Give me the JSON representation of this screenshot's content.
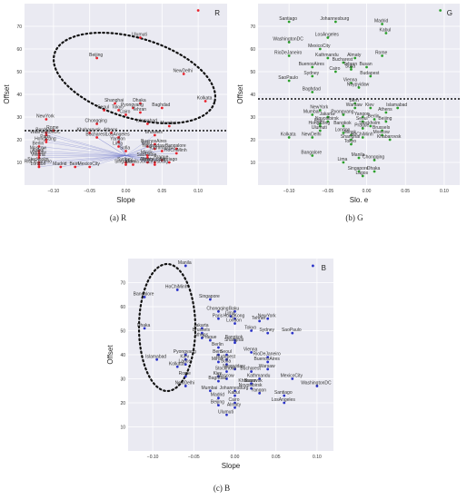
{
  "chart_data": [
    {
      "type": "scatter",
      "corner_label": "R",
      "caption": "(a) R",
      "xlabel": "Slope",
      "ylabel": "Offset",
      "xlim": [
        -0.14,
        0.14
      ],
      "ylim": [
        0,
        80
      ],
      "xticks": [
        -0.1,
        -0.05,
        0.0,
        0.05,
        0.1
      ],
      "xtick_labels": [
        "−0.10",
        "−0.05",
        "0.00",
        "0.05",
        "0.10"
      ],
      "yticks": [
        10,
        20,
        30,
        40,
        50,
        60,
        70
      ],
      "yticks_labels": [
        "10",
        "20",
        "30",
        "40",
        "50",
        "60",
        "70"
      ],
      "grid": true,
      "marker_color": "#e8212b",
      "threshold_y": 24,
      "fan_origin": [
        0.0,
        13
      ],
      "points": [
        {
          "x": 0.1,
          "y": 77,
          "label": ""
        },
        {
          "x": 0.02,
          "y": 65,
          "label": "Ulumuti"
        },
        {
          "x": -0.04,
          "y": 56,
          "label": "Beijing"
        },
        {
          "x": 0.08,
          "y": 49,
          "label": "NewDelhi"
        },
        {
          "x": 0.02,
          "y": 36,
          "label": "Dhaka"
        },
        {
          "x": 0.05,
          "y": 34,
          "label": "Baghdad"
        },
        {
          "x": 0.11,
          "y": 37,
          "label": "Kolkata"
        },
        {
          "x": -0.015,
          "y": 36,
          "label": "Shanghai"
        },
        {
          "x": -0.03,
          "y": 33,
          "label": "Seoul"
        },
        {
          "x": -0.01,
          "y": 33,
          "label": "Tokyo"
        },
        {
          "x": 0.0,
          "y": 31,
          "label": "Cairo"
        },
        {
          "x": 0.01,
          "y": 34,
          "label": "Pyongyang"
        },
        {
          "x": 0.02,
          "y": 32,
          "label": "Tehran"
        },
        {
          "x": -0.11,
          "y": 29,
          "label": "NewYork"
        },
        {
          "x": -0.04,
          "y": 27,
          "label": "Chongqing"
        },
        {
          "x": 0.03,
          "y": 27,
          "label": "Islamabad"
        },
        {
          "x": 0.06,
          "y": 26,
          "label": "Mumbai"
        },
        {
          "x": -0.1,
          "y": 24,
          "label": "Rome"
        },
        {
          "x": -0.11,
          "y": 23,
          "label": "Bordeaux"
        },
        {
          "x": -0.05,
          "y": 23,
          "label": "Khabarovsk"
        },
        {
          "x": -0.02,
          "y": 23,
          "label": "Athens"
        },
        {
          "x": 0.04,
          "y": 22,
          "label": "Brussels"
        },
        {
          "x": -0.11,
          "y": 22,
          "label": "WashingtonDC"
        },
        {
          "x": -0.01,
          "y": 21,
          "label": "LosAngeles"
        },
        {
          "x": -0.04,
          "y": 21,
          "label": "Bucharest"
        },
        {
          "x": -0.11,
          "y": 20,
          "label": "Paris"
        },
        {
          "x": -0.11,
          "y": 19,
          "label": "HongKong"
        },
        {
          "x": -0.01,
          "y": 19,
          "label": "Yangon"
        },
        {
          "x": 0.04,
          "y": 18,
          "label": "BuenosAires"
        },
        {
          "x": 0.03,
          "y": 17,
          "label": "Baku"
        },
        {
          "x": 0.04,
          "y": 16,
          "label": "Naypyidaw"
        },
        {
          "x": 0.07,
          "y": 16,
          "label": "Bangalore"
        },
        {
          "x": 0.05,
          "y": 15,
          "label": "Kathmandu"
        },
        {
          "x": 0.07,
          "y": 14,
          "label": "HoChiMinh"
        },
        {
          "x": -0.12,
          "y": 17,
          "label": "Berlin"
        },
        {
          "x": -0.12,
          "y": 15,
          "label": "Moscow"
        },
        {
          "x": -0.12,
          "y": 14,
          "label": "Kabul"
        },
        {
          "x": -0.12,
          "y": 13,
          "label": "Warsaw"
        },
        {
          "x": -0.12,
          "y": 12,
          "label": "Vienna"
        },
        {
          "x": -0.12,
          "y": 10,
          "label": "Stockholm"
        },
        {
          "x": -0.12,
          "y": 9,
          "label": "RioDeJaneiro"
        },
        {
          "x": -0.12,
          "y": 8,
          "label": "London"
        },
        {
          "x": -0.09,
          "y": 8,
          "label": "Madrid"
        },
        {
          "x": -0.07,
          "y": 8,
          "label": "Bern"
        },
        {
          "x": -0.05,
          "y": 8,
          "label": "MexicoCity"
        },
        {
          "x": -0.01,
          "y": 17,
          "label": "Lima"
        },
        {
          "x": 0.0,
          "y": 15,
          "label": "Sofia"
        },
        {
          "x": 0.03,
          "y": 13,
          "label": "Minsk"
        },
        {
          "x": 0.03,
          "y": 12,
          "label": "SaoPaulo"
        },
        {
          "x": 0.05,
          "y": 11,
          "label": "Prague"
        },
        {
          "x": 0.06,
          "y": 10,
          "label": "Santiago"
        },
        {
          "x": 0.0,
          "y": 10,
          "label": "Sydney"
        },
        {
          "x": 0.0,
          "y": 9,
          "label": "Singapore"
        },
        {
          "x": 0.01,
          "y": 9,
          "label": "Manila"
        },
        {
          "x": 0.03,
          "y": 10,
          "label": "Almaty"
        },
        {
          "x": 0.04,
          "y": 10,
          "label": "Novosibirsk"
        },
        {
          "x": 0.04,
          "y": 9,
          "label": "Johannesburg"
        }
      ]
    },
    {
      "type": "scatter",
      "corner_label": "G",
      "caption": "(b) G",
      "xlabel": "Slo. e",
      "ylabel": "Offset",
      "xlim": [
        -0.14,
        0.12
      ],
      "ylim": [
        0,
        80
      ],
      "xticks": [
        -0.1,
        -0.05,
        0.0,
        0.05,
        0.1
      ],
      "xtick_labels": [
        "−0.10",
        "−0.05",
        "0.00",
        "0.05",
        "0.10"
      ],
      "yticks": [
        10,
        20,
        30,
        40,
        50,
        60,
        70
      ],
      "yticks_labels": [
        "10",
        "20",
        "30",
        "40",
        "50",
        "60",
        "70"
      ],
      "grid": true,
      "marker_color": "#2ca02c",
      "threshold_y": 38,
      "points": [
        {
          "x": 0.095,
          "y": 77,
          "label": ""
        },
        {
          "x": -0.1,
          "y": 72,
          "label": "Santiago"
        },
        {
          "x": -0.04,
          "y": 72,
          "label": "Johannesburg"
        },
        {
          "x": 0.02,
          "y": 71,
          "label": "Madrid"
        },
        {
          "x": 0.025,
          "y": 67,
          "label": "Kabul"
        },
        {
          "x": -0.05,
          "y": 65,
          "label": "LosAngeles"
        },
        {
          "x": -0.1,
          "y": 63,
          "label": "WashingtonDC"
        },
        {
          "x": -0.06,
          "y": 60,
          "label": "MexicoCity"
        },
        {
          "x": -0.1,
          "y": 57,
          "label": "RioDeJaneiro"
        },
        {
          "x": -0.05,
          "y": 56,
          "label": "Kathmandu"
        },
        {
          "x": -0.015,
          "y": 56,
          "label": "Almaty"
        },
        {
          "x": 0.02,
          "y": 57,
          "label": "Rome"
        },
        {
          "x": -0.03,
          "y": 54,
          "label": "Bucharest"
        },
        {
          "x": -0.07,
          "y": 52,
          "label": "BuenosAires"
        },
        {
          "x": -0.02,
          "y": 52,
          "label": "Tehran"
        },
        {
          "x": -0.04,
          "y": 50,
          "label": "Cairo"
        },
        {
          "x": -0.02,
          "y": 51,
          "label": "Sofia"
        },
        {
          "x": 0.0,
          "y": 52,
          "label": "Busan"
        },
        {
          "x": -0.07,
          "y": 48,
          "label": "Sydney"
        },
        {
          "x": 0.005,
          "y": 48,
          "label": "Budapest"
        },
        {
          "x": -0.1,
          "y": 46,
          "label": "SaoPaulo"
        },
        {
          "x": -0.02,
          "y": 45,
          "label": "Vienna"
        },
        {
          "x": -0.01,
          "y": 43,
          "label": "Naypyidaw"
        },
        {
          "x": -0.07,
          "y": 41,
          "label": "Baghdad"
        },
        {
          "x": -0.015,
          "y": 36,
          "label": "Bern"
        },
        {
          "x": -0.015,
          "y": 34,
          "label": "Warsaw"
        },
        {
          "x": 0.005,
          "y": 34,
          "label": "Kiev"
        },
        {
          "x": 0.04,
          "y": 34,
          "label": "Islamabad"
        },
        {
          "x": 0.025,
          "y": 32,
          "label": "Athens"
        },
        {
          "x": -0.06,
          "y": 33,
          "label": "NewYork"
        },
        {
          "x": -0.07,
          "y": 31,
          "label": "Mumbai"
        },
        {
          "x": -0.03,
          "y": 31,
          "label": "Pyongyang"
        },
        {
          "x": -0.05,
          "y": 30,
          "label": "Jakarta"
        },
        {
          "x": -0.005,
          "y": 30,
          "label": "Yangon"
        },
        {
          "x": 0.01,
          "y": 29,
          "label": "Berlin"
        },
        {
          "x": -0.05,
          "y": 28,
          "label": "Novosibirsk"
        },
        {
          "x": -0.06,
          "y": 27,
          "label": "Baku"
        },
        {
          "x": -0.005,
          "y": 28,
          "label": "Seoul"
        },
        {
          "x": 0.025,
          "y": 28,
          "label": "Beijing"
        },
        {
          "x": -0.06,
          "y": 26,
          "label": "HongKong"
        },
        {
          "x": -0.03,
          "y": 26,
          "label": "Bangkok"
        },
        {
          "x": 0.005,
          "y": 26,
          "label": "Stockholm"
        },
        {
          "x": -0.005,
          "y": 25,
          "label": "Prague"
        },
        {
          "x": 0.02,
          "y": 24,
          "label": "Brussels"
        },
        {
          "x": -0.06,
          "y": 24,
          "label": "Ulumuti"
        },
        {
          "x": -0.03,
          "y": 23,
          "label": "London"
        },
        {
          "x": -0.02,
          "y": 22,
          "label": "Minsk"
        },
        {
          "x": 0.02,
          "y": 22,
          "label": "Moscow"
        },
        {
          "x": -0.1,
          "y": 21,
          "label": "Kolkata"
        },
        {
          "x": -0.07,
          "y": 21,
          "label": "NewDelhi"
        },
        {
          "x": -0.02,
          "y": 20,
          "label": "Shanghai"
        },
        {
          "x": -0.005,
          "y": 21,
          "label": "HoChiMinh"
        },
        {
          "x": 0.03,
          "y": 20,
          "label": "Khabarovsk"
        },
        {
          "x": -0.02,
          "y": 18,
          "label": "Tokyo"
        },
        {
          "x": -0.07,
          "y": 13,
          "label": "Bangalore"
        },
        {
          "x": -0.01,
          "y": 12,
          "label": "Manila"
        },
        {
          "x": 0.01,
          "y": 11,
          "label": "Chongqing"
        },
        {
          "x": -0.03,
          "y": 10,
          "label": "Lima"
        },
        {
          "x": -0.01,
          "y": 6,
          "label": "Singapore"
        },
        {
          "x": 0.01,
          "y": 6,
          "label": "Dhaka"
        },
        {
          "x": -0.005,
          "y": 4,
          "label": "Lagos"
        }
      ]
    },
    {
      "type": "scatter",
      "corner_label": "B",
      "caption": "(c) B",
      "xlabel": "Slope",
      "ylabel": "Offset",
      "xlim": [
        -0.13,
        0.12
      ],
      "ylim": [
        0,
        80
      ],
      "xticks": [
        -0.1,
        -0.05,
        0.0,
        0.05,
        0.1
      ],
      "xtick_labels": [
        "−0.10",
        "−0.05",
        "0.00",
        "0.05",
        "0.10"
      ],
      "yticks": [
        10,
        20,
        30,
        40,
        50,
        60,
        70
      ],
      "yticks_labels": [
        "10",
        "20",
        "30",
        "40",
        "50",
        "60",
        "70"
      ],
      "grid": true,
      "marker_color": "#2b33c8",
      "points": [
        {
          "x": 0.095,
          "y": 77,
          "label": ""
        },
        {
          "x": -0.06,
          "y": 77,
          "label": "Manila"
        },
        {
          "x": -0.07,
          "y": 67,
          "label": "HoChiMinh"
        },
        {
          "x": -0.11,
          "y": 64,
          "label": "Bangalore"
        },
        {
          "x": -0.03,
          "y": 63,
          "label": "Singapore"
        },
        {
          "x": -0.02,
          "y": 58,
          "label": "Chongqing"
        },
        {
          "x": 0.0,
          "y": 58,
          "label": "Baku"
        },
        {
          "x": -0.005,
          "y": 56,
          "label": "Lima"
        },
        {
          "x": -0.02,
          "y": 55,
          "label": "Paris"
        },
        {
          "x": 0.0,
          "y": 55,
          "label": "HongKong"
        },
        {
          "x": 0.04,
          "y": 55,
          "label": "NewYork"
        },
        {
          "x": 0.03,
          "y": 54,
          "label": "Tehran"
        },
        {
          "x": 0.0,
          "y": 53,
          "label": "London"
        },
        {
          "x": -0.11,
          "y": 51,
          "label": "Dhaka"
        },
        {
          "x": -0.04,
          "y": 51,
          "label": "Jakarta"
        },
        {
          "x": 0.02,
          "y": 50,
          "label": "Tokyo"
        },
        {
          "x": 0.04,
          "y": 49,
          "label": "Sydney"
        },
        {
          "x": 0.07,
          "y": 49,
          "label": "SaoPaulo"
        },
        {
          "x": -0.04,
          "y": 49,
          "label": "Brussels"
        },
        {
          "x": -0.04,
          "y": 47,
          "label": "Athens"
        },
        {
          "x": -0.03,
          "y": 46,
          "label": "Prague"
        },
        {
          "x": 0.0,
          "y": 46,
          "label": "Bangkok"
        },
        {
          "x": 0.0,
          "y": 45,
          "label": "Shanghai"
        },
        {
          "x": -0.02,
          "y": 43,
          "label": "Berlin"
        },
        {
          "x": 0.02,
          "y": 41,
          "label": "Vienna"
        },
        {
          "x": -0.02,
          "y": 40,
          "label": "Bern"
        },
        {
          "x": -0.01,
          "y": 40,
          "label": "Seoul"
        },
        {
          "x": -0.06,
          "y": 40,
          "label": "Pyongyang"
        },
        {
          "x": 0.04,
          "y": 39,
          "label": "RioDeJaneiro"
        },
        {
          "x": -0.01,
          "y": 38,
          "label": "Budapest"
        },
        {
          "x": -0.095,
          "y": 38,
          "label": "Islamabad"
        },
        {
          "x": -0.06,
          "y": 38,
          "label": "Kiev"
        },
        {
          "x": -0.02,
          "y": 37,
          "label": "Minsk"
        },
        {
          "x": 0.04,
          "y": 37,
          "label": "BuenosAires"
        },
        {
          "x": -0.06,
          "y": 36,
          "label": "Lagos"
        },
        {
          "x": -0.01,
          "y": 36,
          "label": "Sofia"
        },
        {
          "x": -0.07,
          "y": 35,
          "label": "Kolkata"
        },
        {
          "x": 0.0,
          "y": 34,
          "label": "Naypyidaw"
        },
        {
          "x": 0.04,
          "y": 34,
          "label": "Warsaw"
        },
        {
          "x": -0.01,
          "y": 33,
          "label": "Stockholm"
        },
        {
          "x": 0.02,
          "y": 33,
          "label": "Bucharest"
        },
        {
          "x": -0.06,
          "y": 31,
          "label": "Rome"
        },
        {
          "x": -0.02,
          "y": 31,
          "label": "Kiev"
        },
        {
          "x": -0.01,
          "y": 30,
          "label": "Moscow"
        },
        {
          "x": 0.03,
          "y": 30,
          "label": "Kathmandu"
        },
        {
          "x": 0.07,
          "y": 30,
          "label": "MexicoCity"
        },
        {
          "x": -0.02,
          "y": 29,
          "label": "Baghdad"
        },
        {
          "x": 0.02,
          "y": 28,
          "label": "Busan"
        },
        {
          "x": 0.02,
          "y": 28,
          "label": "Khabarovsk"
        },
        {
          "x": -0.06,
          "y": 27,
          "label": "NewDelhi"
        },
        {
          "x": 0.1,
          "y": 27,
          "label": "WashingtonDC"
        },
        {
          "x": 0.02,
          "y": 26,
          "label": "Novosibirsk"
        },
        {
          "x": -0.03,
          "y": 25,
          "label": "Mumbai"
        },
        {
          "x": 0.0,
          "y": 25,
          "label": "Johannesburg"
        },
        {
          "x": 0.03,
          "y": 24,
          "label": "Yangon"
        },
        {
          "x": 0.0,
          "y": 23,
          "label": "Kabul"
        },
        {
          "x": 0.06,
          "y": 23,
          "label": "Santiago"
        },
        {
          "x": -0.02,
          "y": 22,
          "label": "Madrid"
        },
        {
          "x": 0.0,
          "y": 20,
          "label": "Cairo"
        },
        {
          "x": -0.02,
          "y": 19,
          "label": "Beijing"
        },
        {
          "x": 0.0,
          "y": 18,
          "label": "Almaty"
        },
        {
          "x": 0.06,
          "y": 20,
          "label": "LosAngeles"
        },
        {
          "x": -0.01,
          "y": 15,
          "label": "Ulumuti"
        }
      ]
    }
  ]
}
